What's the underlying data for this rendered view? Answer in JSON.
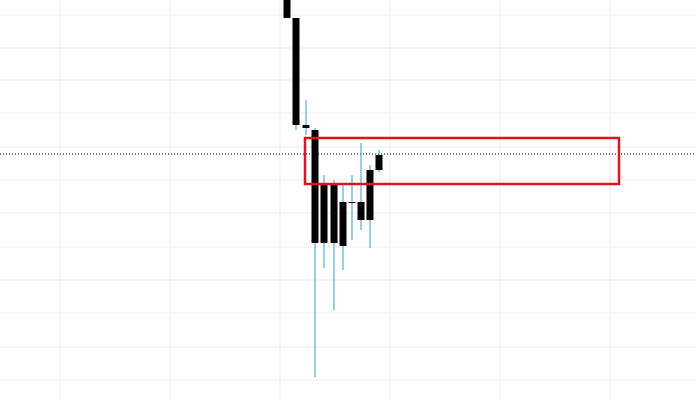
{
  "chart_data": {
    "type": "candlestick",
    "x": [
      287,
      296,
      306,
      315,
      324,
      334,
      343,
      352,
      361,
      370,
      379
    ],
    "open": [
      400,
      382,
      275,
      270,
      217,
      215,
      198,
      198,
      198,
      230,
      245
    ],
    "high": [
      400,
      382,
      300,
      272,
      225,
      220,
      217,
      225,
      257,
      235,
      250
    ],
    "low": [
      382,
      270,
      265,
      23,
      132,
      90,
      130,
      160,
      170,
      152,
      228
    ],
    "close": [
      382,
      275,
      272,
      157,
      157,
      157,
      154,
      197,
      180,
      180,
      230
    ],
    "body_color": "#000000",
    "wick_color": "#3a9ad9",
    "xlim": [
      0,
      695
    ],
    "ylim": [
      0,
      400
    ],
    "xticks": [
      60,
      170,
      280,
      390,
      500,
      610
    ],
    "yticks": [
      20,
      53,
      87,
      120,
      153,
      187,
      220,
      253,
      287,
      320,
      352,
      385
    ],
    "grid": true,
    "price_line": {
      "value": 246,
      "color": "#000000"
    },
    "highlight": {
      "x": [
        305,
        619
      ],
      "y": [
        216,
        262
      ],
      "color": "#e0141e"
    }
  }
}
